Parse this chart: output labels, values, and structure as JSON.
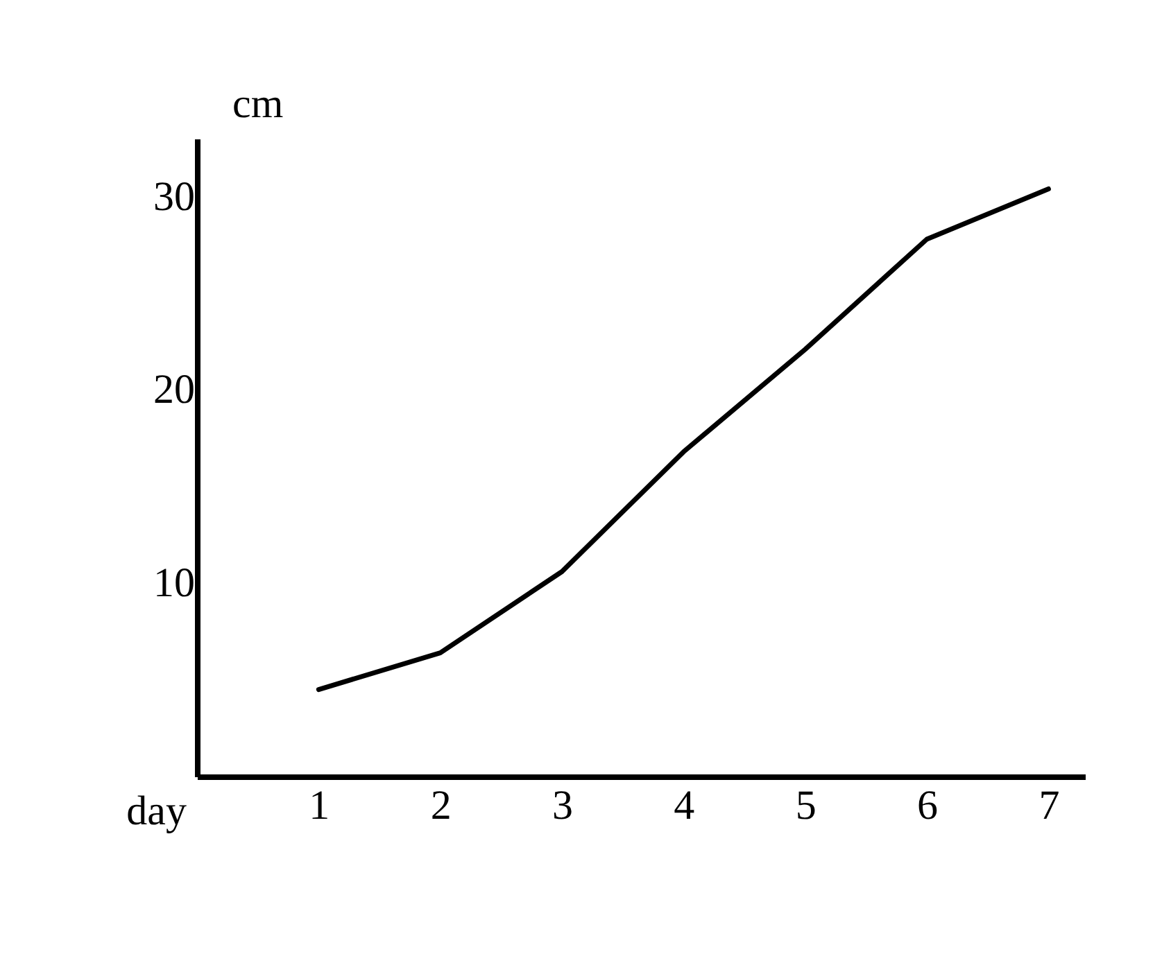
{
  "chart_data": {
    "type": "line",
    "xlabel": "day",
    "ylabel": "cm",
    "x": [
      1,
      2,
      3,
      4,
      5,
      6,
      7
    ],
    "series": [
      {
        "color": "#000000",
        "values": [
          4.5,
          6.4,
          10.6,
          16.8,
          22.1,
          27.8,
          30.4
        ]
      }
    ],
    "xlim": [
      0,
      7.3
    ],
    "xticks": [
      1,
      2,
      3,
      4,
      5,
      6,
      7
    ],
    "ylim": [
      0,
      33
    ],
    "yticks": [
      10,
      20,
      30
    ],
    "grid": false,
    "marker": "none",
    "line_style": "solid"
  }
}
